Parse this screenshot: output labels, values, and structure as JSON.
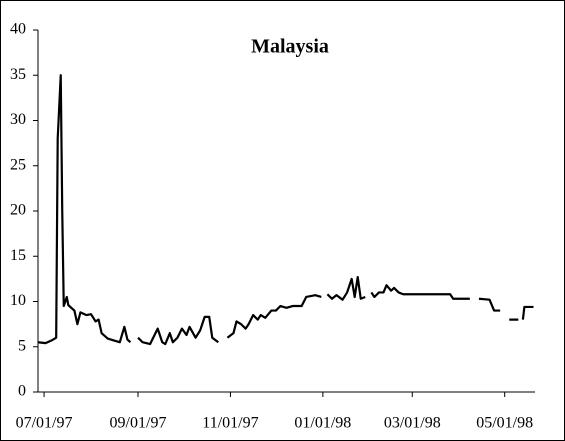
{
  "chart_data": {
    "type": "line",
    "title": "Malaysia",
    "x": [
      "1997-06-27",
      "1997-07-02",
      "1997-07-06",
      "1997-07-09",
      "1997-07-10",
      "1997-07-12",
      "1997-07-13",
      "1997-07-14",
      "1997-07-16",
      "1997-07-17",
      "1997-07-21",
      "1997-07-23",
      "1997-07-25",
      "1997-07-29",
      "1997-08-01",
      "1997-08-04",
      "1997-08-06",
      "1997-08-08",
      "1997-08-12",
      "1997-08-16",
      "1997-08-20",
      "1997-08-23",
      "1997-08-25",
      "1997-08-27",
      "1997-08-29",
      "1997-09-01",
      "1997-09-04",
      "1997-09-09",
      "1997-09-14",
      "1997-09-17",
      "1997-09-19",
      "1997-09-22",
      "1997-09-24",
      "1997-09-27",
      "1997-09-30",
      "1997-10-03",
      "1997-10-05",
      "1997-10-09",
      "1997-10-12",
      "1997-10-15",
      "1997-10-18",
      "1997-10-20",
      "1997-10-24",
      "1997-10-26",
      "1997-10-30",
      "1997-11-03",
      "1997-11-05",
      "1997-11-08",
      "1997-11-11",
      "1997-11-13",
      "1997-11-16",
      "1997-11-19",
      "1997-11-21",
      "1997-11-24",
      "1997-11-28",
      "1997-12-01",
      "1997-12-04",
      "1997-12-08",
      "1997-12-12",
      "1997-12-18",
      "1997-12-21",
      "1997-12-27",
      "1997-12-31",
      "1998-01-02",
      "1998-01-04",
      "1998-01-07",
      "1998-01-10",
      "1998-01-14",
      "1998-01-17",
      "1998-01-20",
      "1998-01-22",
      "1998-01-24",
      "1998-01-26",
      "1998-01-29",
      "1998-01-31",
      "1998-02-02",
      "1998-02-04",
      "1998-02-07",
      "1998-02-10",
      "1998-02-12",
      "1998-02-15",
      "1998-02-17",
      "1998-02-20",
      "1998-02-23",
      "1998-03-26",
      "1998-03-28",
      "1998-04-08",
      "1998-04-10",
      "1998-04-14",
      "1998-04-21",
      "1998-04-24",
      "1998-04-28",
      "1998-05-02",
      "1998-05-04",
      "1998-05-10",
      "1998-05-12",
      "1998-05-13",
      "1998-05-14",
      "1998-05-20"
    ],
    "series": [
      {
        "color": "#000000",
        "values": [
          5.5,
          5.4,
          5.7,
          6,
          28,
          35,
          20,
          9.5,
          10.5,
          9.6,
          9,
          7.5,
          8.8,
          8.5,
          8.6,
          7.8,
          8,
          6.5,
          5.9,
          5.7,
          5.5,
          7.2,
          5.8,
          5.5,
          null,
          6,
          5.5,
          5.3,
          7,
          5.5,
          5.3,
          6.5,
          5.5,
          6,
          7,
          6.3,
          7.2,
          6,
          6.8,
          8.3,
          8.3,
          6,
          5.5,
          null,
          6,
          6.5,
          7.8,
          7.5,
          7,
          7.5,
          8.5,
          8,
          8.5,
          8.2,
          9,
          9,
          9.5,
          9.3,
          9.5,
          9.5,
          10.5,
          10.7,
          10.5,
          null,
          10.8,
          10.3,
          10.7,
          10.2,
          11,
          12.5,
          10.5,
          12.7,
          10.3,
          10.5,
          null,
          11,
          10.5,
          11,
          11,
          11.8,
          11.2,
          11.5,
          11,
          10.8,
          10.8,
          10.3,
          10.3,
          null,
          10.3,
          10.2,
          9,
          9,
          null,
          8,
          8,
          null,
          8,
          9.4,
          9.4
        ]
      }
    ],
    "xlim": [
      "1997-06-27",
      "1998-05-21"
    ],
    "xticks": [
      {
        "value": "1997-07-01",
        "label": "07/01/97"
      },
      {
        "value": "1997-09-01",
        "label": "09/01/97"
      },
      {
        "value": "1997-11-01",
        "label": "11/01/97"
      },
      {
        "value": "1998-01-01",
        "label": "01/01/98"
      },
      {
        "value": "1998-03-01",
        "label": "03/01/98"
      },
      {
        "value": "1998-05-01",
        "label": "05/01/98"
      }
    ],
    "ylim": [
      0,
      40
    ],
    "yticks": [
      0,
      5,
      10,
      15,
      20,
      25,
      30,
      35,
      40
    ]
  }
}
